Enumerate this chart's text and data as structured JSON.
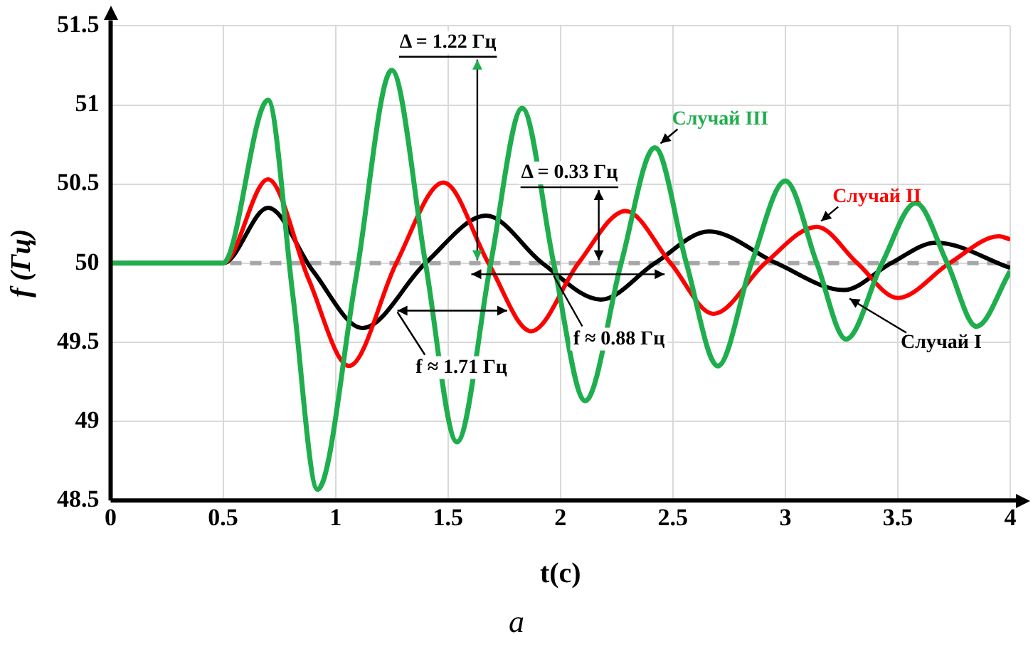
{
  "chart_data": {
    "type": "line",
    "xlabel": "t(c)",
    "ylabel": "f (Гц)",
    "xlim": [
      0,
      4
    ],
    "xticks": [
      0,
      0.5,
      1,
      1.5,
      2,
      2.5,
      3,
      3.5,
      4
    ],
    "ylim": [
      48.5,
      51.5
    ],
    "yticks": [
      48.5,
      49,
      49.5,
      50,
      50.5,
      51,
      51.5
    ],
    "grid": true,
    "legend": false,
    "marker": "none",
    "line_style": "solid",
    "series": [
      {
        "name": "Случай I",
        "color": "#000000",
        "x": [
          0,
          0.5,
          0.7,
          0.9,
          1.12,
          1.4,
          1.67,
          1.92,
          2.18,
          2.42,
          2.66,
          2.96,
          3.26,
          3.47,
          3.67,
          4.0
        ],
        "values": [
          50,
          50,
          50.35,
          49.95,
          49.59,
          50,
          50.3,
          50,
          49.77,
          50,
          50.2,
          50,
          49.83,
          50,
          50.13,
          49.97
        ]
      },
      {
        "name": "Случай II",
        "color": "#ff0000",
        "x": [
          0,
          0.5,
          0.7,
          0.88,
          1.06,
          1.27,
          1.48,
          1.68,
          1.87,
          2.08,
          2.29,
          2.49,
          2.68,
          2.91,
          3.14,
          3.32,
          3.5,
          3.73,
          3.95,
          4.0
        ],
        "values": [
          50,
          50,
          50.53,
          49.9,
          49.35,
          50,
          50.51,
          50,
          49.57,
          50,
          50.33,
          50,
          49.68,
          50,
          50.23,
          50,
          49.78,
          50,
          50.17,
          50.15
        ]
      },
      {
        "name": "Случай III",
        "color": "#1fae4e",
        "x": [
          0,
          0.5,
          0.7,
          0.81,
          0.92,
          1.09,
          1.25,
          1.4,
          1.54,
          1.69,
          1.83,
          1.97,
          2.11,
          2.27,
          2.42,
          2.56,
          2.7,
          2.85,
          3.0,
          3.14,
          3.27,
          3.43,
          3.58,
          3.72,
          3.85,
          4.0
        ],
        "values": [
          50,
          50,
          51.03,
          49.8,
          48.57,
          49.9,
          51.22,
          50,
          48.87,
          50,
          50.98,
          50,
          49.13,
          50,
          50.73,
          50,
          49.35,
          50,
          50.52,
          50,
          49.52,
          50,
          50.38,
          50,
          49.6,
          49.95
        ]
      }
    ],
    "ref_lines": [
      {
        "axis": "y",
        "value": 50,
        "color": "#a6a6a6",
        "line_style": "dashed"
      }
    ],
    "annotations": [
      "Δ = 1.22 Гц",
      "Δ = 0.33 Гц",
      "f ≈ 1.71 Гц",
      {
        "text": "f ≈ 0.88 Гц",
        "x": 1.97,
        "y": 49.93
      },
      "a"
    ]
  }
}
